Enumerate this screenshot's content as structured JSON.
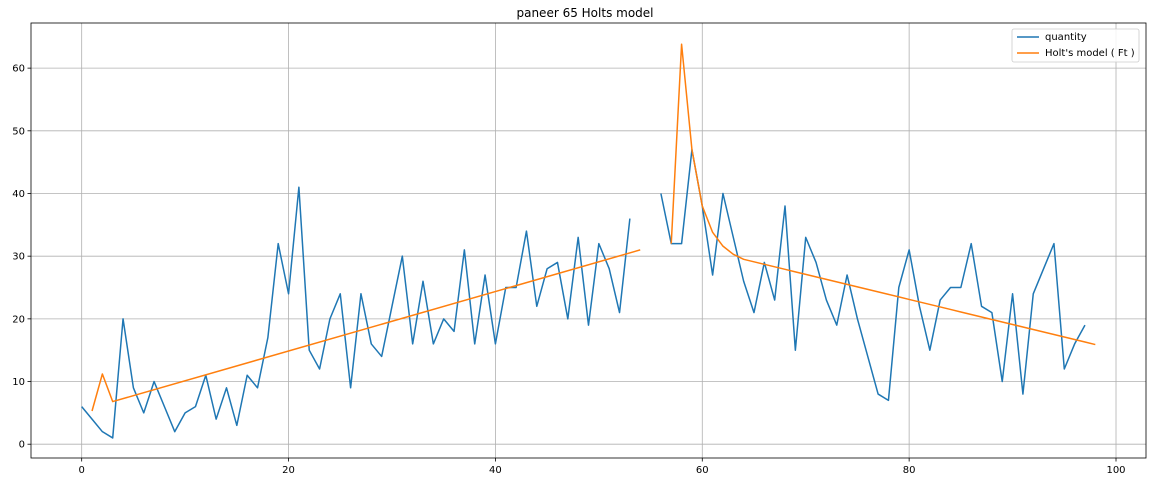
{
  "chart_data": {
    "type": "line",
    "title": "paneer 65 Holts model",
    "xlabel": "",
    "ylabel": "",
    "xlim": [
      -4.9,
      102.9
    ],
    "ylim": [
      -2.2,
      67.2
    ],
    "x_ticks": [
      0,
      20,
      40,
      60,
      80,
      100
    ],
    "y_ticks": [
      0,
      10,
      20,
      30,
      40,
      50,
      60
    ],
    "grid": true,
    "legend_position": "top-right",
    "series": [
      {
        "name": "quantity",
        "color": "#1f77b4",
        "x": [
          0,
          1,
          2,
          3,
          4,
          5,
          6,
          7,
          8,
          9,
          10,
          11,
          12,
          13,
          14,
          15,
          16,
          17,
          18,
          19,
          20,
          21,
          22,
          23,
          24,
          25,
          26,
          27,
          28,
          29,
          30,
          31,
          32,
          33,
          34,
          35,
          36,
          37,
          38,
          39,
          40,
          41,
          42,
          43,
          44,
          45,
          46,
          47,
          48,
          49,
          50,
          51,
          52,
          53,
          54,
          55,
          56,
          57,
          58,
          59,
          60,
          61,
          62,
          63,
          64,
          65,
          66,
          67,
          68,
          69,
          70,
          71,
          72,
          73,
          74,
          75,
          76,
          77,
          78,
          79,
          80,
          81,
          82,
          83,
          84,
          85,
          86,
          87,
          88,
          89,
          90,
          91,
          92,
          93,
          94,
          95,
          96,
          97
        ],
        "values": [
          6,
          4,
          2,
          1,
          20,
          9,
          5,
          10,
          6,
          2,
          5,
          6,
          11,
          4,
          9,
          3,
          11,
          9,
          17,
          32,
          24,
          41,
          15,
          12,
          20,
          24,
          9,
          24,
          16,
          14,
          22,
          30,
          16,
          26,
          16,
          20,
          18,
          31,
          16,
          27,
          16,
          25,
          25,
          34,
          22,
          28,
          29,
          20,
          33,
          19,
          32,
          28,
          21,
          36,
          null,
          null,
          40,
          32,
          32,
          47,
          38,
          27,
          40,
          33,
          26,
          21,
          29,
          23,
          38,
          15,
          33,
          29,
          23,
          19,
          27,
          20,
          14,
          8,
          7,
          25,
          31,
          22,
          15,
          23,
          25,
          25,
          32,
          22,
          21,
          10,
          24,
          8,
          24,
          28,
          32,
          12,
          16,
          19
        ]
      },
      {
        "name": "Holt's model ( Ft )",
        "color": "#ff7f0e",
        "x": [
          1,
          2,
          3,
          54,
          null,
          57,
          58,
          59,
          60,
          61,
          62,
          63,
          64,
          65,
          66,
          67,
          68,
          69,
          70,
          71,
          72,
          73,
          74,
          75,
          76,
          77,
          78,
          79,
          80,
          81,
          82,
          83,
          84,
          85,
          86,
          87,
          88,
          89,
          90,
          91,
          92,
          93,
          94,
          95,
          96,
          97,
          98
        ],
        "values": [
          5.3,
          11.2,
          6.8,
          31.0,
          null,
          32,
          63.8,
          47,
          38,
          33.8,
          31.6,
          30.3,
          29.5,
          29.1,
          28.7,
          28.3,
          27.9,
          27.5,
          27.1,
          26.7,
          26.3,
          25.9,
          25.5,
          25.1,
          24.7,
          24.3,
          23.9,
          23.5,
          23.1,
          22.7,
          22.3,
          21.9,
          21.5,
          21.1,
          20.7,
          20.3,
          19.9,
          19.5,
          19.1,
          18.7,
          18.3,
          17.9,
          17.5,
          17.1,
          16.7,
          16.3,
          15.9
        ]
      }
    ]
  }
}
